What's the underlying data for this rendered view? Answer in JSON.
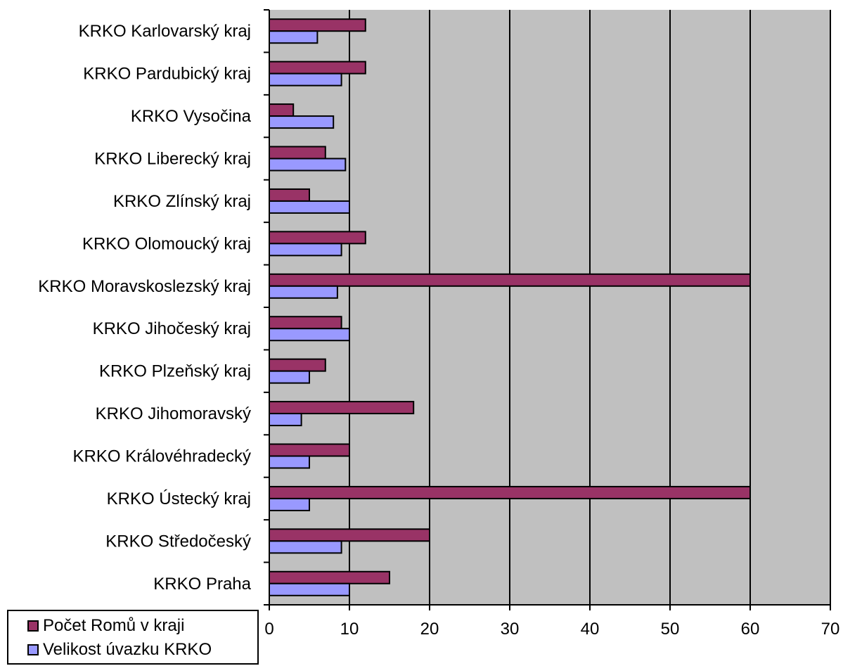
{
  "chart_data": {
    "type": "bar",
    "orientation": "horizontal",
    "title": "",
    "xlabel": "",
    "ylabel": "",
    "xlim": [
      0,
      70
    ],
    "x_ticks": [
      "0",
      "10",
      "20",
      "30",
      "40",
      "50",
      "60",
      "70"
    ],
    "grid": "vertical",
    "legend_position": "bottom-left",
    "plot_background": "#C0C0C0",
    "categories": [
      "KRKO Karlovarský kraj",
      "KRKO Pardubický kraj",
      "KRKO Vysočina",
      "KRKO Liberecký kraj",
      "KRKO Zlínský kraj",
      "KRKO Olomoucký kraj",
      "KRKO Moravskoslezský kraj",
      "KRKO Jihočeský kraj",
      "KRKO Plzeňský kraj",
      "KRKO Jihomoravský",
      "KRKO Královéhradecký",
      "KRKO Ústecký kraj",
      "KRKO Středočeský",
      "KRKO Praha"
    ],
    "series": [
      {
        "name": "Počet Romů v kraji",
        "color": "#993366",
        "values": [
          12,
          12,
          3,
          7,
          5,
          12,
          60,
          9,
          7,
          18,
          10,
          60,
          20,
          15
        ]
      },
      {
        "name": "Velikost úvazku KRKO",
        "color": "#9999FF",
        "values": [
          6,
          9,
          8,
          9.5,
          10,
          9,
          8.5,
          10,
          5,
          4,
          5,
          5,
          9,
          10
        ]
      }
    ]
  }
}
